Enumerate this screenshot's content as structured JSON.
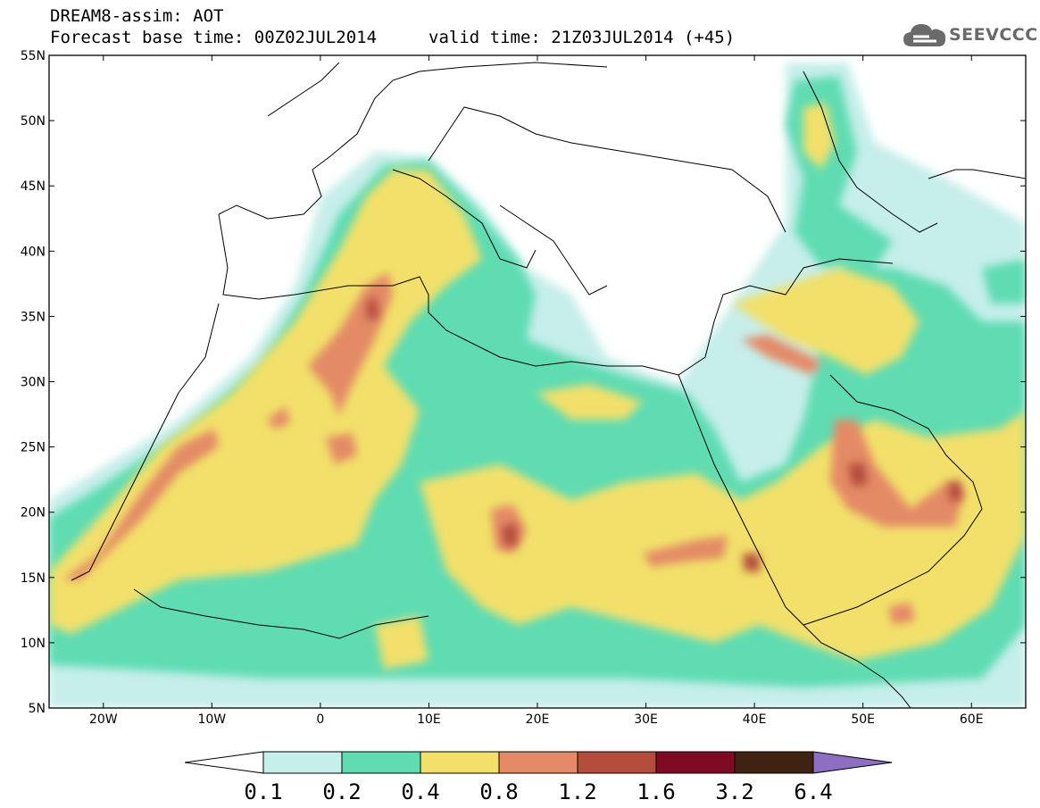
{
  "header": {
    "title": "DREAM8-assim: AOT",
    "base_time": "Forecast base time: 00Z02JUL2014",
    "valid_time": "valid time: 21Z03JUL2014 (+45)"
  },
  "logo": {
    "text": "SEEVCCC",
    "icon": "cloud-icon"
  },
  "map": {
    "lat_ticks": [
      "55N",
      "50N",
      "45N",
      "40N",
      "35N",
      "30N",
      "25N",
      "20N",
      "15N",
      "10N",
      "5N"
    ],
    "lon_ticks": [
      "20W",
      "10W",
      "0",
      "10E",
      "20E",
      "30E",
      "40E",
      "50E",
      "60E"
    ],
    "lat_range": [
      5,
      55
    ],
    "lon_range": [
      -25,
      65
    ]
  },
  "colorbar": {
    "levels": [
      "0.1",
      "0.2",
      "0.4",
      "0.8",
      "1.2",
      "1.6",
      "3.2",
      "6.4"
    ],
    "colors": [
      "#c6eeea",
      "#5fdcb2",
      "#f2e06a",
      "#e48a66",
      "#b44c3c",
      "#7e0a24",
      "#3f2212",
      "#8e6ec2"
    ]
  }
}
